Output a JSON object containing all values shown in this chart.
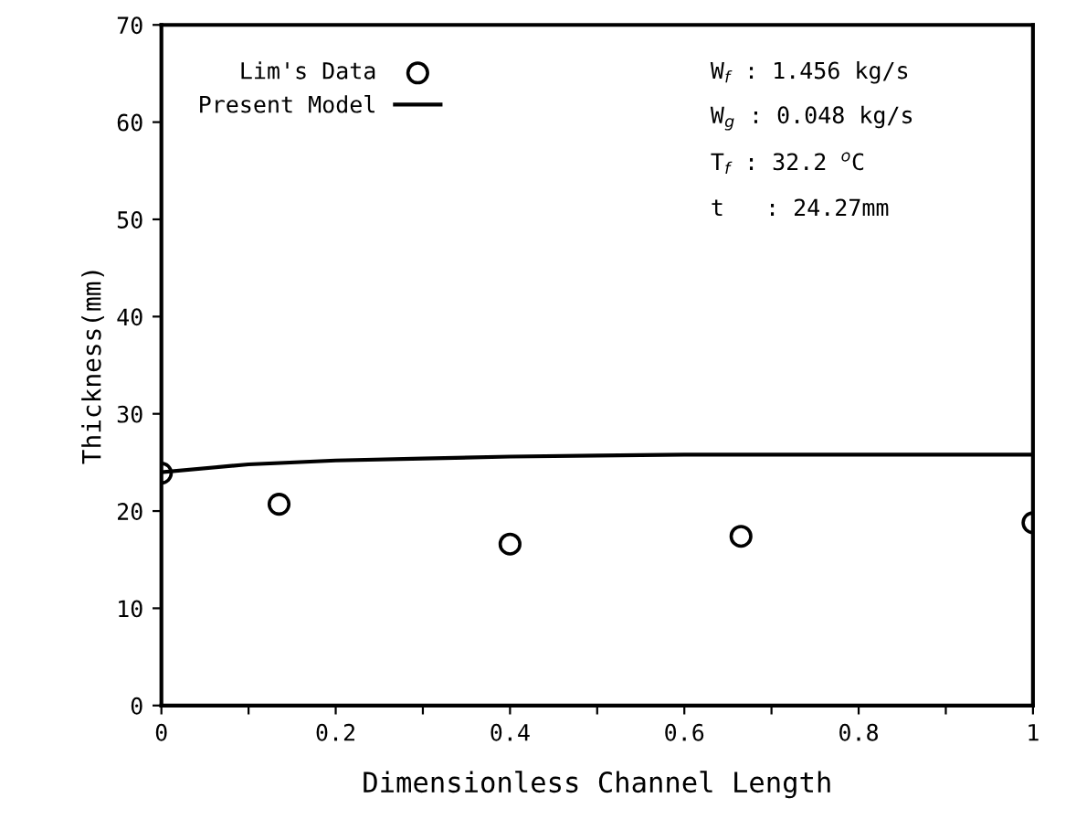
{
  "chart_data": {
    "type": "scatter",
    "xlabel": "Dimensionless Channel Length",
    "ylabel": "Thickness(mm)",
    "xlim": [
      0,
      1
    ],
    "ylim": [
      0,
      70
    ],
    "xticks": [
      0,
      {
        "value": 0.1,
        "label": null
      },
      0.2,
      {
        "value": 0.3,
        "label": null
      },
      0.4,
      {
        "value": 0.5,
        "label": null
      },
      0.6,
      {
        "value": 0.7,
        "label": null
      },
      0.8,
      {
        "value": 0.9,
        "label": null
      },
      1
    ],
    "yticks": [
      0,
      10,
      20,
      30,
      40,
      50,
      60,
      70
    ],
    "grid": false,
    "legend": "top left",
    "series": [
      {
        "name": "Lim's Data",
        "marker": "circle",
        "color": "#000000",
        "x": [
          0,
          0.135,
          0.4,
          0.665,
          1.0
        ],
        "values": [
          23.9,
          20.7,
          16.6,
          17.4,
          18.8
        ]
      },
      {
        "name": "Present Model",
        "type": "line",
        "marker": "none",
        "line_style": "solid",
        "color": "#000000",
        "x": [
          0,
          0.1,
          0.2,
          0.3,
          0.4,
          0.5,
          0.6,
          0.8,
          1.0
        ],
        "values": [
          24.0,
          24.8,
          25.2,
          25.4,
          25.6,
          25.7,
          25.8,
          25.8,
          25.8
        ]
      }
    ],
    "annotations": [
      "W$_{f}$ : 1.456 kg/s",
      "W$_{g}$ : 0.048 kg/s",
      "T$_{f}$ : 32.2 $^{o}$C",
      "t   : 24.27mm"
    ]
  }
}
